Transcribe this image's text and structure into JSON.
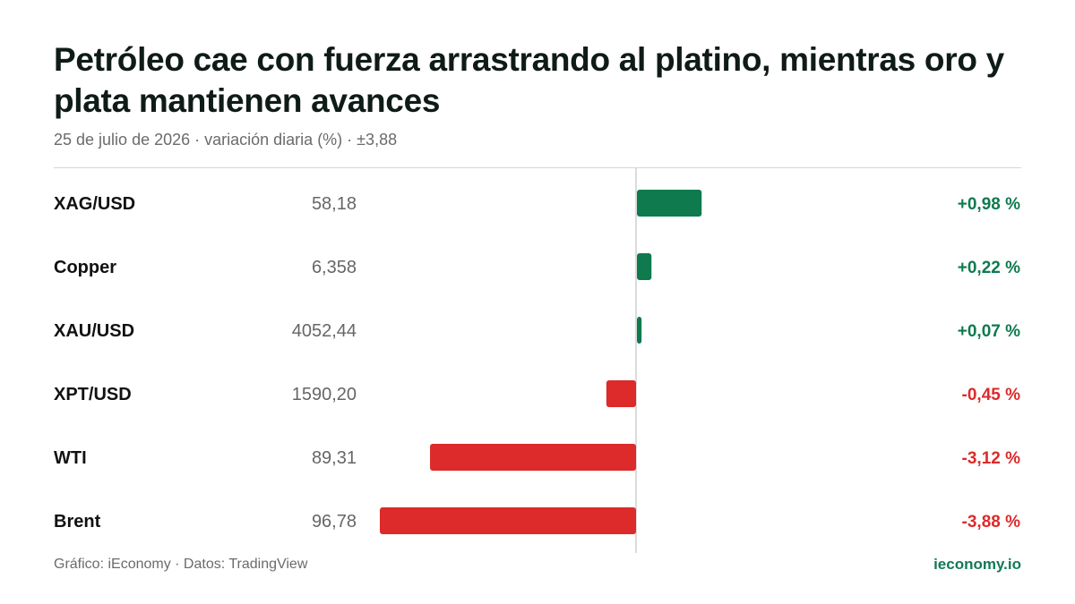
{
  "title": "Petróleo cae con fuerza arrastrando al platino, mientras oro y plata mantienen avances",
  "subtitle": "25 de julio de 2026 · variación diaria (%) · ±3,88",
  "footer": {
    "source": "Gráfico: iEconomy · Datos: TradingView",
    "brand": "ieconomy.io"
  },
  "colors": {
    "positive": "#0e7a4e",
    "negative": "#dd2a2a",
    "axis": "#d0d0d0"
  },
  "chart_data": {
    "type": "bar",
    "orientation": "horizontal",
    "xlim": [
      -3.88,
      3.88
    ],
    "rows": [
      {
        "label": "XAG/USD",
        "price": "58,18",
        "value": 0.98,
        "value_label": "+0,98 %"
      },
      {
        "label": "Copper",
        "price": "6,358",
        "value": 0.22,
        "value_label": "+0,22 %"
      },
      {
        "label": "XAU/USD",
        "price": "4052,44",
        "value": 0.07,
        "value_label": "+0,07 %"
      },
      {
        "label": "XPT/USD",
        "price": "1590,20",
        "value": -0.45,
        "value_label": "-0,45 %"
      },
      {
        "label": "WTI",
        "price": "89,31",
        "value": -3.12,
        "value_label": "-3,12 %"
      },
      {
        "label": "Brent",
        "price": "96,78",
        "value": -3.88,
        "value_label": "-3,88 %"
      }
    ]
  }
}
